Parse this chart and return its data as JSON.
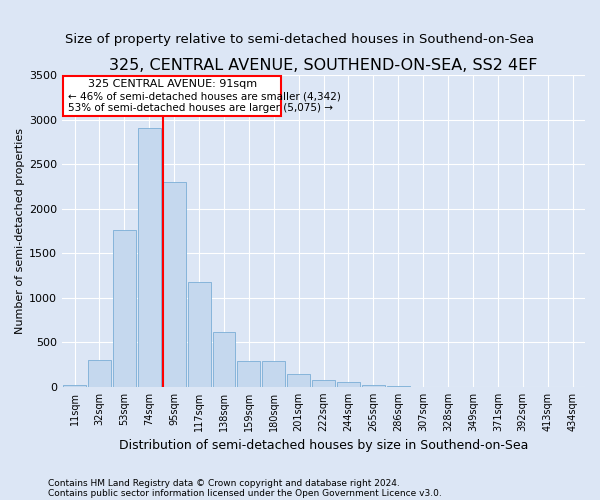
{
  "title": "325, CENTRAL AVENUE, SOUTHEND-ON-SEA, SS2 4EF",
  "subtitle": "Size of property relative to semi-detached houses in Southend-on-Sea",
  "xlabel": "Distribution of semi-detached houses by size in Southend-on-Sea",
  "ylabel": "Number of semi-detached properties",
  "footnote1": "Contains HM Land Registry data © Crown copyright and database right 2024.",
  "footnote2": "Contains public sector information licensed under the Open Government Licence v3.0.",
  "bar_labels": [
    "11sqm",
    "32sqm",
    "53sqm",
    "74sqm",
    "95sqm",
    "117sqm",
    "138sqm",
    "159sqm",
    "180sqm",
    "201sqm",
    "222sqm",
    "244sqm",
    "265sqm",
    "286sqm",
    "307sqm",
    "328sqm",
    "349sqm",
    "371sqm",
    "392sqm",
    "413sqm",
    "434sqm"
  ],
  "bar_values": [
    25,
    300,
    1760,
    2900,
    2300,
    1175,
    610,
    290,
    285,
    140,
    75,
    50,
    20,
    5,
    0,
    0,
    0,
    0,
    0,
    0,
    0
  ],
  "bar_color": "#c5d8ee",
  "bar_edge_color": "#7aaed6",
  "red_line_bar_index": 4,
  "annotation_text1": "325 CENTRAL AVENUE: 91sqm",
  "annotation_text2": "← 46% of semi-detached houses are smaller (4,342)",
  "annotation_text3": "53% of semi-detached houses are larger (5,075) →",
  "ylim": [
    0,
    3500
  ],
  "yticks": [
    0,
    500,
    1000,
    1500,
    2000,
    2500,
    3000,
    3500
  ],
  "background_color": "#dce6f5",
  "axes_background": "#dce6f5",
  "grid_color": "#ffffff",
  "title_fontsize": 11.5,
  "subtitle_fontsize": 9.5,
  "xlabel_fontsize": 9,
  "ylabel_fontsize": 8
}
